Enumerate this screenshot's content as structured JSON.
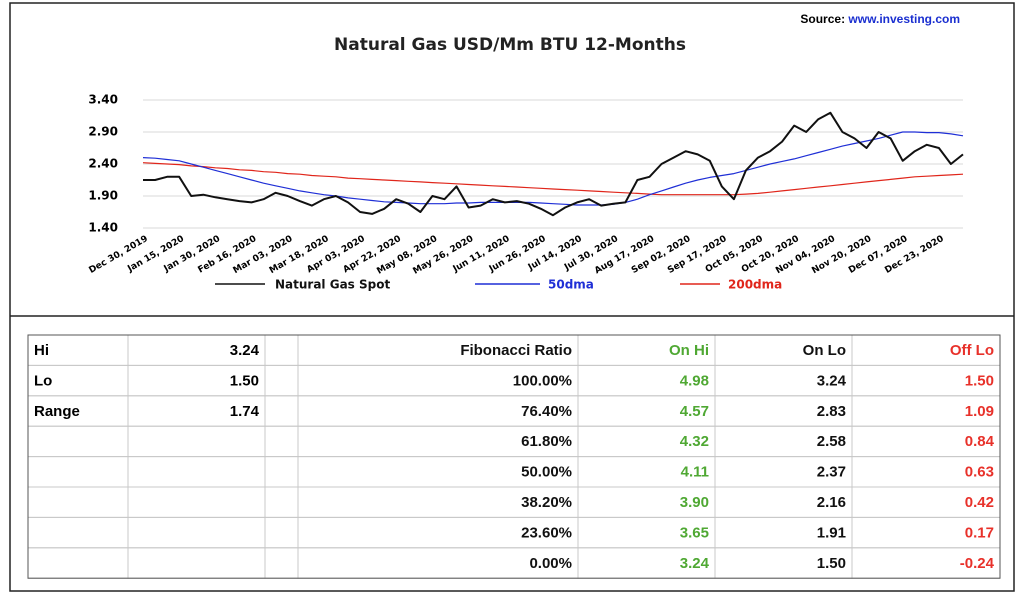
{
  "source_label": "Source:",
  "source_url": "www.investing.com",
  "chart_data": {
    "type": "line",
    "title": "Natural Gas USD/Mm BTU 12-Months",
    "categories": [
      "Dec 30, 2019",
      null,
      null,
      "Jan 15, 2020",
      null,
      null,
      "Jan 30, 2020",
      null,
      null,
      "Feb 16, 2020",
      null,
      null,
      "Mar 03, 2020",
      null,
      null,
      "Mar 18, 2020",
      null,
      null,
      "Apr 03, 2020",
      null,
      null,
      "Apr 22, 2020",
      null,
      null,
      "May 08, 2020",
      null,
      null,
      "May 26, 2020",
      null,
      null,
      "Jun 11, 2020",
      null,
      null,
      "Jun 26, 2020",
      null,
      null,
      "Jul 14, 2020",
      null,
      null,
      "Jul 30, 2020",
      null,
      null,
      "Aug 17, 2020",
      null,
      null,
      "Sep 02, 2020",
      null,
      null,
      "Sep 17, 2020",
      null,
      null,
      "Oct 05, 2020",
      null,
      null,
      "Oct 20, 2020",
      null,
      null,
      "Nov 04, 2020",
      null,
      null,
      "Nov 20, 2020",
      null,
      null,
      "Dec 07, 2020",
      null,
      null,
      "Dec 23, 2020",
      null,
      null
    ],
    "series": [
      {
        "name": "Natural Gas Spot",
        "color": "#111111",
        "width": 2,
        "values": [
          2.15,
          2.15,
          2.2,
          2.2,
          1.9,
          1.92,
          1.88,
          1.85,
          1.82,
          1.8,
          1.85,
          1.95,
          1.9,
          1.82,
          1.75,
          1.85,
          1.9,
          1.8,
          1.65,
          1.62,
          1.7,
          1.85,
          1.78,
          1.65,
          1.9,
          1.85,
          2.05,
          1.72,
          1.75,
          1.85,
          1.8,
          1.82,
          1.78,
          1.7,
          1.6,
          1.72,
          1.8,
          1.85,
          1.75,
          1.78,
          1.8,
          2.15,
          2.2,
          2.4,
          2.5,
          2.6,
          2.55,
          2.45,
          2.05,
          1.85,
          2.3,
          2.5,
          2.6,
          2.75,
          3.0,
          2.9,
          3.1,
          3.2,
          2.9,
          2.8,
          2.65,
          2.9,
          2.8,
          2.45,
          2.6,
          2.7,
          2.65,
          2.4,
          2.55
        ]
      },
      {
        "name": "50dma",
        "color": "#1f2fd6",
        "width": 1.2,
        "values": [
          2.5,
          2.49,
          2.47,
          2.45,
          2.4,
          2.35,
          2.3,
          2.25,
          2.2,
          2.15,
          2.1,
          2.06,
          2.02,
          1.98,
          1.95,
          1.92,
          1.9,
          1.87,
          1.85,
          1.83,
          1.81,
          1.8,
          1.79,
          1.78,
          1.78,
          1.78,
          1.79,
          1.79,
          1.8,
          1.8,
          1.8,
          1.8,
          1.8,
          1.79,
          1.78,
          1.77,
          1.76,
          1.76,
          1.76,
          1.77,
          1.8,
          1.85,
          1.92,
          1.98,
          2.04,
          2.1,
          2.15,
          2.19,
          2.22,
          2.25,
          2.3,
          2.35,
          2.4,
          2.44,
          2.48,
          2.53,
          2.58,
          2.63,
          2.68,
          2.72,
          2.76,
          2.8,
          2.85,
          2.9,
          2.9,
          2.89,
          2.89,
          2.87,
          2.84
        ]
      },
      {
        "name": "200dma",
        "color": "#e0261b",
        "width": 1.2,
        "values": [
          2.42,
          2.41,
          2.4,
          2.39,
          2.37,
          2.36,
          2.34,
          2.33,
          2.31,
          2.3,
          2.28,
          2.27,
          2.25,
          2.24,
          2.22,
          2.21,
          2.2,
          2.18,
          2.17,
          2.16,
          2.15,
          2.14,
          2.13,
          2.12,
          2.11,
          2.1,
          2.09,
          2.08,
          2.07,
          2.06,
          2.05,
          2.04,
          2.03,
          2.02,
          2.01,
          2.0,
          1.99,
          1.98,
          1.97,
          1.96,
          1.95,
          1.94,
          1.93,
          1.92,
          1.92,
          1.92,
          1.92,
          1.92,
          1.92,
          1.92,
          1.93,
          1.94,
          1.96,
          1.98,
          2.0,
          2.02,
          2.04,
          2.06,
          2.08,
          2.1,
          2.12,
          2.14,
          2.16,
          2.18,
          2.2,
          2.21,
          2.22,
          2.23,
          2.24
        ]
      }
    ],
    "ylim": [
      1.4,
      3.4
    ],
    "yticks": [
      {
        "value": 1.4,
        "label": "1.40"
      },
      {
        "value": 1.9,
        "label": "1.90"
      },
      {
        "value": 2.4,
        "label": "2.40"
      },
      {
        "value": 2.9,
        "label": "2.90"
      },
      {
        "value": 3.4,
        "label": "3.40"
      }
    ],
    "grid": true
  },
  "table": {
    "left_rows": [
      [
        "Hi",
        "3.24"
      ],
      [
        "Lo",
        "1.50"
      ],
      [
        "Range",
        "1.74"
      ]
    ],
    "header": [
      "Fibonacci Ratio",
      "On Hi",
      "On Lo",
      "Off Lo"
    ],
    "column_colors": [
      "#111111",
      "#4fa833",
      "#111111",
      "#e8312a"
    ],
    "rows": [
      [
        "100.00%",
        "4.98",
        "3.24",
        "1.50"
      ],
      [
        "76.40%",
        "4.57",
        "2.83",
        "1.09"
      ],
      [
        "61.80%",
        "4.32",
        "2.58",
        "0.84"
      ],
      [
        "50.00%",
        "4.11",
        "2.37",
        "0.63"
      ],
      [
        "38.20%",
        "3.90",
        "2.16",
        "0.42"
      ],
      [
        "23.60%",
        "3.65",
        "1.91",
        "0.17"
      ],
      [
        "0.00%",
        "3.24",
        "1.50",
        "-0.24"
      ]
    ]
  }
}
